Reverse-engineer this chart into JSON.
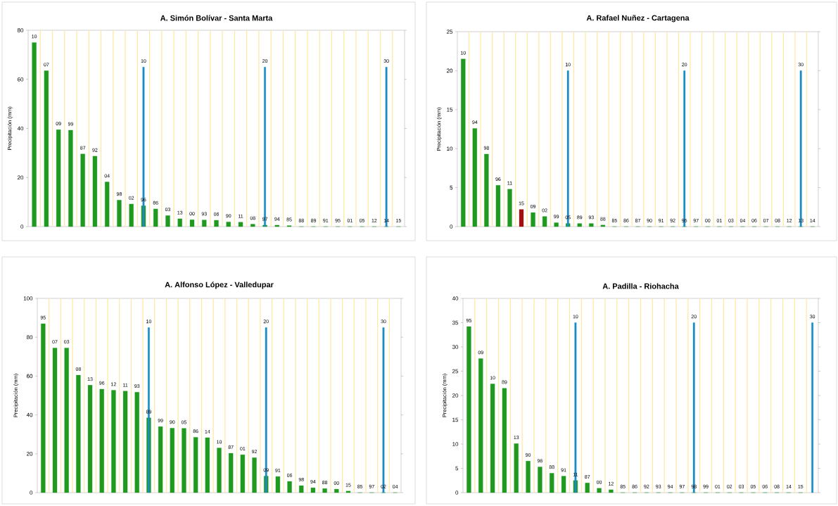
{
  "chart_data": [
    {
      "type": "bar",
      "title": "A. Simón Bolívar - Santa Marta",
      "ylabel": "Precipitación (mm)",
      "categories": [
        "10",
        "07",
        "09",
        "99",
        "87",
        "92",
        "04",
        "98",
        "02",
        "96",
        "86",
        "03",
        "13",
        "00",
        "93",
        "06",
        "90",
        "11",
        "08",
        "97",
        "94",
        "85",
        "88",
        "89",
        "91",
        "95",
        "01",
        "05",
        "12",
        "14",
        "15"
      ],
      "ylim": [
        0,
        80
      ],
      "yticks": [
        0,
        20,
        40,
        60,
        80
      ],
      "grid": "x",
      "series": [
        {
          "color": "#1f9a1f",
          "values": [
            75,
            63.5,
            39.5,
            39.3,
            29.6,
            28.7,
            18.2,
            10.8,
            9.2,
            8.5,
            7.2,
            4.5,
            3.2,
            2.8,
            2.7,
            2.6,
            1.9,
            1.8,
            1.0,
            0.6,
            0.6,
            0.4,
            0,
            0,
            0,
            0,
            0,
            0,
            0,
            0,
            0
          ]
        },
        {
          "color": "#1b8cc4",
          "values": [
            null,
            null,
            null,
            null,
            null,
            null,
            null,
            null,
            null,
            65,
            null,
            null,
            null,
            null,
            null,
            null,
            null,
            null,
            null,
            65,
            null,
            null,
            null,
            null,
            null,
            null,
            null,
            null,
            null,
            65,
            null
          ]
        }
      ],
      "annotations": [
        {
          "text": "10",
          "x": "96",
          "y": 65
        },
        {
          "text": "20",
          "x": "97",
          "y": 65
        },
        {
          "text": "30",
          "x": "14",
          "y": 65
        }
      ]
    },
    {
      "type": "bar",
      "title": "A. Rafael Nuñez - Cartagena",
      "ylabel": "Precipitación (mm)",
      "categories": [
        "10",
        "94",
        "98",
        "96",
        "11",
        "15",
        "09",
        "02",
        "99",
        "05",
        "89",
        "93",
        "88",
        "85",
        "86",
        "87",
        "90",
        "91",
        "92",
        "95",
        "97",
        "00",
        "01",
        "03",
        "04",
        "06",
        "07",
        "08",
        "12",
        "13",
        "14"
      ],
      "ylim": [
        0,
        25
      ],
      "yticks": [
        0,
        5,
        10,
        15,
        20,
        25
      ],
      "grid": "x",
      "series": [
        {
          "colors": [
            "#1f9a1f",
            "#1f9a1f",
            "#1f9a1f",
            "#1f9a1f",
            "#1f9a1f",
            "#a01010",
            "#1f9a1f",
            "#1f9a1f",
            "#1f9a1f",
            "#1f9a1f",
            "#1f9a1f",
            "#1f9a1f",
            "#1f9a1f",
            "#1f9a1f",
            "#1f9a1f",
            "#1f9a1f",
            "#1f9a1f",
            "#1f9a1f",
            "#1f9a1f",
            "#1f9a1f",
            "#1f9a1f",
            "#1f9a1f",
            "#1f9a1f",
            "#1f9a1f",
            "#1f9a1f",
            "#1f9a1f",
            "#1f9a1f",
            "#1f9a1f",
            "#1f9a1f",
            "#1f9a1f",
            "#1f9a1f"
          ],
          "values": [
            21.5,
            12.6,
            9.3,
            5.3,
            4.8,
            2.2,
            1.8,
            1.3,
            0.5,
            0.4,
            0.4,
            0.4,
            0.2,
            0,
            0,
            0,
            0,
            0,
            0,
            0,
            0,
            0,
            0,
            0,
            0,
            0,
            0,
            0,
            0,
            0,
            0
          ]
        },
        {
          "color": "#1b8cc4",
          "values": [
            null,
            null,
            null,
            null,
            null,
            null,
            null,
            null,
            null,
            20,
            null,
            null,
            null,
            null,
            null,
            null,
            null,
            null,
            null,
            20,
            null,
            null,
            null,
            null,
            null,
            null,
            null,
            null,
            null,
            20,
            null
          ]
        }
      ],
      "annotations": [
        {
          "text": "10",
          "x": "05",
          "y": 20
        },
        {
          "text": "20",
          "x": "95",
          "y": 20
        },
        {
          "text": "30",
          "x": "13",
          "y": 20
        }
      ]
    },
    {
      "type": "bar",
      "title": "A. Alfonso López - Valledupar",
      "ylabel": "Precipitación (mm)",
      "categories": [
        "95",
        "07",
        "03",
        "08",
        "13",
        "96",
        "12",
        "11",
        "93",
        "89",
        "99",
        "90",
        "05",
        "86",
        "14",
        "10",
        "87",
        "01",
        "92",
        "09",
        "91",
        "06",
        "98",
        "94",
        "88",
        "00",
        "15",
        "85",
        "97",
        "02",
        "04"
      ],
      "ylim": [
        0,
        100
      ],
      "yticks": [
        0,
        20,
        40,
        60,
        80,
        100
      ],
      "grid": "x",
      "series": [
        {
          "color": "#1f9a1f",
          "values": [
            87,
            74.5,
            74.5,
            60.5,
            55.3,
            53.3,
            52.7,
            52.3,
            51.7,
            38.5,
            34,
            33.2,
            33.1,
            28.5,
            28.3,
            23,
            20.3,
            19.5,
            18,
            8.5,
            8.3,
            5.8,
            3.6,
            2.5,
            2.1,
            1.8,
            0.8,
            0,
            0,
            0,
            0
          ]
        },
        {
          "color": "#1b8cc4",
          "values": [
            null,
            null,
            null,
            null,
            null,
            null,
            null,
            null,
            null,
            85,
            null,
            null,
            null,
            null,
            null,
            null,
            null,
            null,
            null,
            85,
            null,
            null,
            null,
            null,
            null,
            null,
            null,
            null,
            null,
            85,
            null
          ]
        }
      ],
      "annotations": [
        {
          "text": "10",
          "x": "89",
          "y": 85
        },
        {
          "text": "20",
          "x": "09",
          "y": 85
        },
        {
          "text": "30",
          "x": "02",
          "y": 85
        }
      ]
    },
    {
      "type": "bar",
      "title": "A. Padilla - Riohacha",
      "ylabel": "Precipitación (mm)",
      "categories": [
        "95",
        "09",
        "10",
        "89",
        "13",
        "90",
        "96",
        "88",
        "91",
        "11",
        "87",
        "00",
        "12",
        "85",
        "86",
        "92",
        "93",
        "94",
        "97",
        "98",
        "99",
        "01",
        "02",
        "03",
        "05",
        "06",
        "08",
        "14",
        "15",
        null
      ],
      "ylim": [
        0,
        40
      ],
      "yticks": [
        0,
        5,
        10,
        15,
        20,
        25,
        30,
        35,
        40
      ],
      "grid": "x",
      "series": [
        {
          "color": "#1f9a1f",
          "values": [
            34.2,
            27.6,
            22.4,
            21.5,
            10.1,
            6.5,
            5.3,
            4.0,
            3.4,
            2.5,
            2.0,
            0.9,
            0.6,
            0,
            0,
            0,
            0,
            0,
            0,
            0,
            0,
            0,
            0,
            0,
            0,
            0,
            0,
            0,
            0,
            null
          ]
        },
        {
          "color": "#1b8cc4",
          "values": [
            null,
            null,
            null,
            null,
            null,
            null,
            null,
            null,
            null,
            35,
            null,
            null,
            null,
            null,
            null,
            null,
            null,
            null,
            null,
            35,
            null,
            null,
            null,
            null,
            null,
            null,
            null,
            null,
            null,
            35
          ]
        }
      ],
      "annotations": [
        {
          "text": "10",
          "x": "11",
          "y": 35
        },
        {
          "text": "20",
          "x": "98",
          "y": 35
        },
        {
          "text": "30",
          "y": 35
        }
      ]
    }
  ]
}
